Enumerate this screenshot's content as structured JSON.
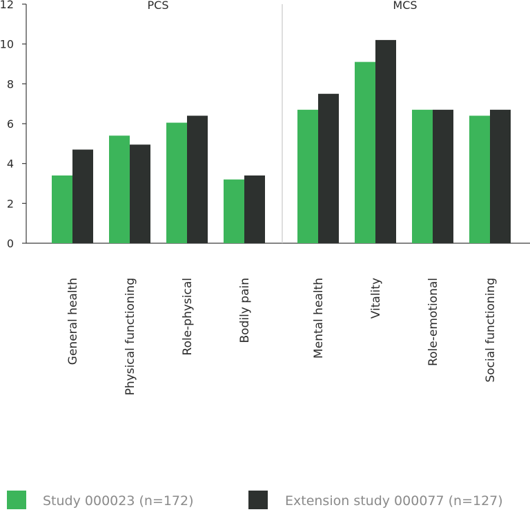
{
  "chart_data": {
    "type": "bar",
    "categories": [
      "General health",
      "Physical functioning",
      "Role-physical",
      "Bodily pain",
      "Mental health",
      "Vitality",
      "Role-emotional",
      "Social functioning"
    ],
    "groups": [
      {
        "label": "PCS",
        "categories": [
          "General health",
          "Physical functioning",
          "Role-physical",
          "Bodily pain"
        ]
      },
      {
        "label": "MCS",
        "categories": [
          "Mental health",
          "Vitality",
          "Role-emotional",
          "Social functioning"
        ]
      }
    ],
    "series": [
      {
        "name": "Study 000023 (n=172)",
        "color": "#3cb55a",
        "values": [
          3.4,
          5.4,
          6.05,
          3.2,
          6.7,
          9.1,
          6.7,
          6.4
        ]
      },
      {
        "name": "Extension study 000077 (n=127)",
        "color": "#2d312f",
        "values": [
          4.7,
          4.95,
          6.4,
          3.4,
          7.5,
          10.2,
          6.7,
          6.7
        ]
      }
    ],
    "yticks": [
      "0",
      "2",
      "4",
      "6",
      "8",
      "10",
      "12"
    ],
    "ylim": [
      0,
      12
    ],
    "title": "",
    "xlabel": "",
    "ylabel": "",
    "grid": false,
    "legend_position": "bottom"
  }
}
